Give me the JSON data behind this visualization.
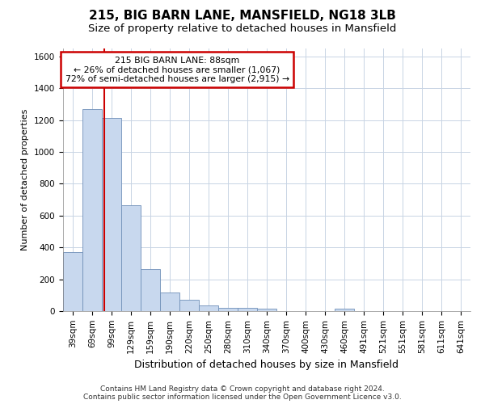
{
  "title_line1": "215, BIG BARN LANE, MANSFIELD, NG18 3LB",
  "title_line2": "Size of property relative to detached houses in Mansfield",
  "xlabel": "Distribution of detached houses by size in Mansfield",
  "ylabel": "Number of detached properties",
  "footer_line1": "Contains HM Land Registry data © Crown copyright and database right 2024.",
  "footer_line2": "Contains public sector information licensed under the Open Government Licence v3.0.",
  "bar_labels": [
    "39sqm",
    "69sqm",
    "99sqm",
    "129sqm",
    "159sqm",
    "190sqm",
    "220sqm",
    "250sqm",
    "280sqm",
    "310sqm",
    "340sqm",
    "370sqm",
    "400sqm",
    "430sqm",
    "460sqm",
    "491sqm",
    "521sqm",
    "551sqm",
    "581sqm",
    "611sqm",
    "641sqm"
  ],
  "bar_values": [
    370,
    1270,
    1215,
    665,
    265,
    115,
    70,
    35,
    20,
    18,
    15,
    0,
    0,
    0,
    15,
    0,
    0,
    0,
    0,
    0,
    0
  ],
  "bar_color": "#c8d8ee",
  "bar_edge_color": "#7090b8",
  "vline_x_index": 1.63,
  "annotation_line1": "215 BIG BARN LANE: 88sqm",
  "annotation_line2": "← 26% of detached houses are smaller (1,067)",
  "annotation_line3": "72% of semi-detached houses are larger (2,915) →",
  "annotation_box_facecolor": "#ffffff",
  "annotation_box_edgecolor": "#cc0000",
  "vline_color": "#cc0000",
  "ylim": [
    0,
    1650
  ],
  "yticks": [
    0,
    200,
    400,
    600,
    800,
    1000,
    1200,
    1400,
    1600
  ],
  "grid_color": "#c8d4e4",
  "bg_color": "#ffffff",
  "title1_fontsize": 11,
  "title2_fontsize": 9.5,
  "ylabel_fontsize": 8,
  "xlabel_fontsize": 9,
  "tick_fontsize": 7.5,
  "footer_fontsize": 6.5
}
